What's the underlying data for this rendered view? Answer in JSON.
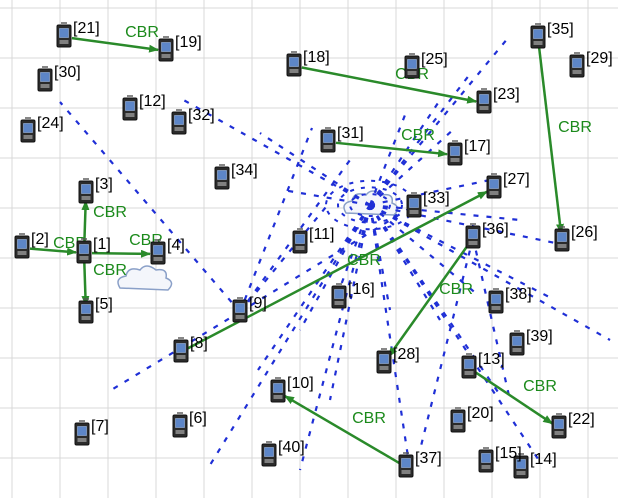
{
  "grid": {
    "line_color": "#d8d8d8"
  },
  "colors": {
    "dash": "#1f2fd6",
    "arrow": "#2a8a2a",
    "cbr_text": "#1b8a1b",
    "node_dark": "#2b2b2b",
    "node_screen": "#5d86c8",
    "cloud_stroke": "#8aa0c8"
  },
  "nodes": [
    {
      "id": "1",
      "label": "[1]"
    },
    {
      "id": "2",
      "label": "[2]"
    },
    {
      "id": "3",
      "label": "[3]"
    },
    {
      "id": "4",
      "label": "[4]"
    },
    {
      "id": "5",
      "label": "[5]"
    },
    {
      "id": "6",
      "label": "[6]"
    },
    {
      "id": "7",
      "label": "[7]"
    },
    {
      "id": "8",
      "label": "[8]"
    },
    {
      "id": "9",
      "label": "[9]"
    },
    {
      "id": "10",
      "label": "[10]"
    },
    {
      "id": "11",
      "label": "[11]"
    },
    {
      "id": "12",
      "label": "[12]"
    },
    {
      "id": "13",
      "label": "[13]"
    },
    {
      "id": "14",
      "label": "[14]"
    },
    {
      "id": "15",
      "label": "[15]"
    },
    {
      "id": "16",
      "label": "[16]"
    },
    {
      "id": "17",
      "label": "[17]"
    },
    {
      "id": "18",
      "label": "[18]"
    },
    {
      "id": "19",
      "label": "[19]"
    },
    {
      "id": "20",
      "label": "[20]"
    },
    {
      "id": "21",
      "label": "[21]"
    },
    {
      "id": "22",
      "label": "[22]"
    },
    {
      "id": "23",
      "label": "[23]"
    },
    {
      "id": "24",
      "label": "[24]"
    },
    {
      "id": "25",
      "label": "[25]"
    },
    {
      "id": "26",
      "label": "[26]"
    },
    {
      "id": "27",
      "label": "[27]"
    },
    {
      "id": "28",
      "label": "[28]"
    },
    {
      "id": "29",
      "label": "[29]"
    },
    {
      "id": "30",
      "label": "[30]"
    },
    {
      "id": "31",
      "label": "[31]"
    },
    {
      "id": "32",
      "label": "[32]"
    },
    {
      "id": "33",
      "label": "[33]"
    },
    {
      "id": "34",
      "label": "[34]"
    },
    {
      "id": "35",
      "label": "[35]"
    },
    {
      "id": "36",
      "label": "[36]"
    },
    {
      "id": "37",
      "label": "[37]"
    },
    {
      "id": "38",
      "label": "[38]"
    },
    {
      "id": "39",
      "label": "[39]"
    },
    {
      "id": "40",
      "label": "[40]"
    }
  ],
  "flows": [
    {
      "from": "21",
      "to": "19",
      "label": "CBR"
    },
    {
      "from": "18",
      "to": "23",
      "label": "CBR"
    },
    {
      "from": "31",
      "to": "17",
      "label": "CBR"
    },
    {
      "from": "35",
      "to": "26",
      "label": "CBR"
    },
    {
      "from": "8",
      "to": "27",
      "label": "CBR"
    },
    {
      "from": "36",
      "to": "28",
      "label": "CBR"
    },
    {
      "from": "13",
      "to": "22",
      "label": "CBR"
    },
    {
      "from": "37",
      "to": "10",
      "label": "CBR"
    },
    {
      "from": "2",
      "to": "1",
      "label": "CBR"
    },
    {
      "from": "1",
      "to": "3",
      "label": "CBR"
    },
    {
      "from": "1",
      "to": "4",
      "label": "CBR"
    },
    {
      "from": "1",
      "to": "5",
      "label": "CBR"
    }
  ]
}
